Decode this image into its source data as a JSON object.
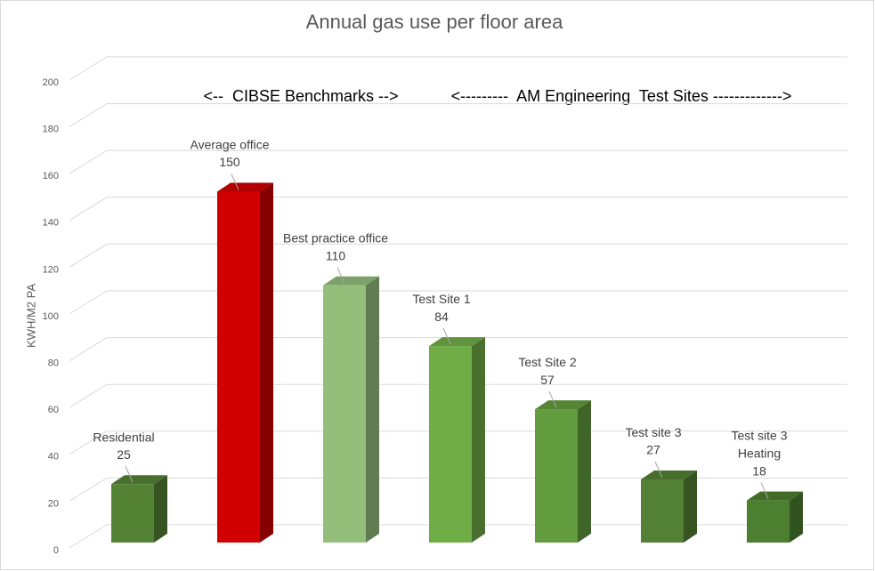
{
  "chart_data": {
    "type": "bar3d",
    "title": "Annual gas use per floor area",
    "y_label": "KWH/M2 PA",
    "annotations": [
      "<--  CIBSE Benchmarks -->",
      "<---------  AM Engineering  Test Sites ------------->"
    ],
    "categories": [
      "Residential",
      "Average office",
      "Best practice office",
      "Test Site 1",
      "Test Site 2",
      "Test site 3",
      "Test site 3\nHeating"
    ],
    "values": [
      25,
      150,
      110,
      84,
      57,
      27,
      18
    ],
    "colors": [
      "#548235",
      "#d00000",
      "#93bf7b",
      "#70ad47",
      "#629c3e",
      "#538135",
      "#4c7f2f"
    ],
    "ylim": [
      0,
      200
    ],
    "yticks": [
      0,
      20,
      40,
      60,
      80,
      100,
      120,
      140,
      160,
      180,
      200
    ],
    "grid": true
  }
}
